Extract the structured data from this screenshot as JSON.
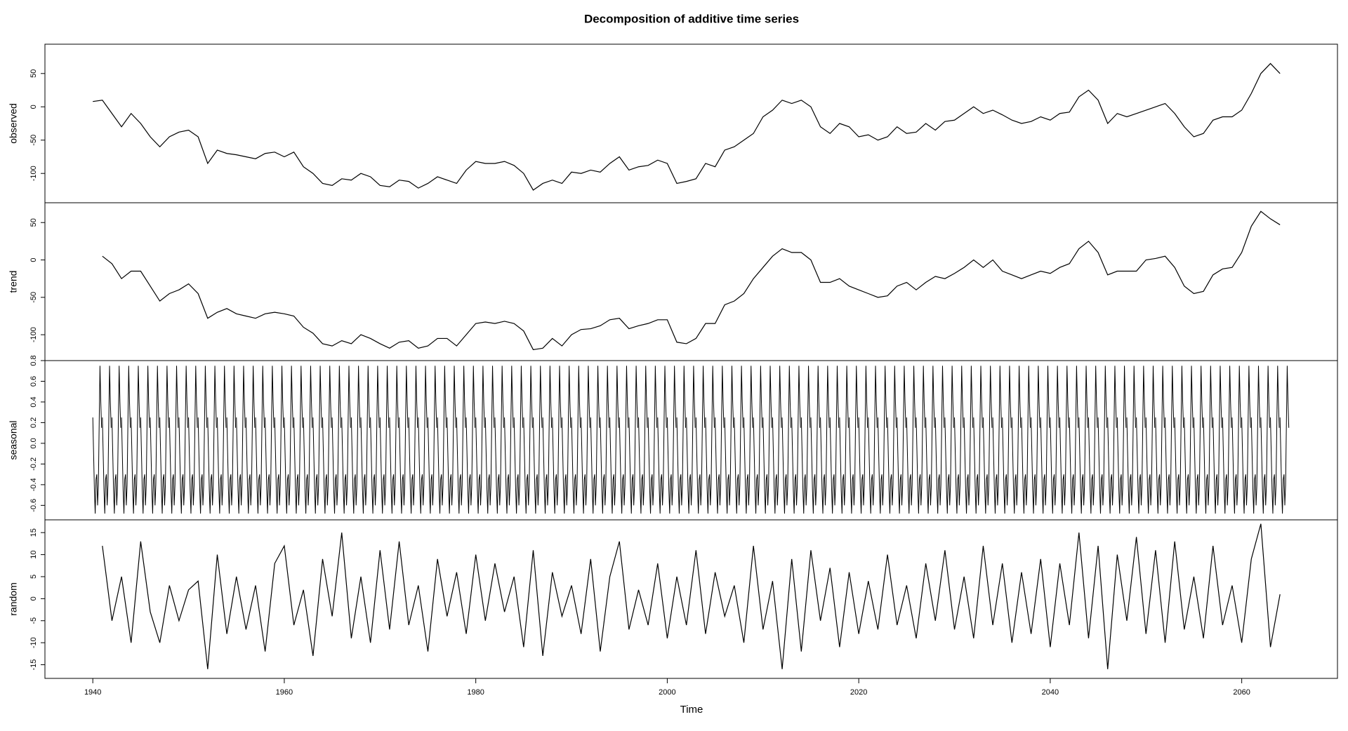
{
  "chart_data": {
    "type": "line",
    "title": "Decomposition of additive time series",
    "xlabel": "Time",
    "color": "#000000",
    "x": [
      1940,
      1941,
      1942,
      1943,
      1944,
      1945,
      1946,
      1947,
      1948,
      1949,
      1950,
      1951,
      1952,
      1953,
      1954,
      1955,
      1956,
      1957,
      1958,
      1959,
      1960,
      1961,
      1962,
      1963,
      1964,
      1965,
      1966,
      1967,
      1968,
      1969,
      1970,
      1971,
      1972,
      1973,
      1974,
      1975,
      1976,
      1977,
      1978,
      1979,
      1980,
      1981,
      1982,
      1983,
      1984,
      1985,
      1986,
      1987,
      1988,
      1989,
      1990,
      1991,
      1992,
      1993,
      1994,
      1995,
      1996,
      1997,
      1998,
      1999,
      2000,
      2001,
      2002,
      2003,
      2004,
      2005,
      2006,
      2007,
      2008,
      2009,
      2010,
      2011,
      2012,
      2013,
      2014,
      2015,
      2016,
      2017,
      2018,
      2019,
      2020,
      2021,
      2022,
      2023,
      2024,
      2025,
      2026,
      2027,
      2028,
      2029,
      2030,
      2031,
      2032,
      2033,
      2034,
      2035,
      2036,
      2037,
      2038,
      2039,
      2040,
      2041,
      2042,
      2043,
      2044,
      2045,
      2046,
      2047,
      2048,
      2049,
      2050,
      2051,
      2052,
      2053,
      2054,
      2055,
      2056,
      2057,
      2058,
      2059,
      2060,
      2061,
      2062,
      2063,
      2064
    ],
    "xlim": [
      1935,
      2070
    ],
    "xticks": [
      1940,
      1960,
      1980,
      2000,
      2020,
      2040,
      2060
    ],
    "panels": [
      {
        "ylabel": "observed",
        "ylim": [
          -144,
          94
        ],
        "yticks": [
          -100,
          -50,
          0,
          50
        ],
        "values": [
          8,
          10,
          -10,
          -30,
          -10,
          -25,
          -45,
          -60,
          -45,
          -38,
          -35,
          -45,
          -85,
          -65,
          -70,
          -72,
          -75,
          -78,
          -70,
          -68,
          -75,
          -68,
          -90,
          -100,
          -115,
          -118,
          -108,
          -110,
          -100,
          -105,
          -118,
          -120,
          -110,
          -112,
          -122,
          -115,
          -105,
          -110,
          -115,
          -95,
          -82,
          -85,
          -85,
          -82,
          -88,
          -100,
          -125,
          -115,
          -110,
          -115,
          -98,
          -100,
          -95,
          -98,
          -85,
          -75,
          -95,
          -90,
          -88,
          -80,
          -85,
          -115,
          -112,
          -108,
          -85,
          -90,
          -65,
          -60,
          -50,
          -40,
          -15,
          -5,
          10,
          5,
          10,
          0,
          -30,
          -40,
          -25,
          -30,
          -45,
          -42,
          -50,
          -45,
          -30,
          -40,
          -38,
          -25,
          -35,
          -22,
          -20,
          -10,
          0,
          -10,
          -5,
          -12,
          -20,
          -25,
          -22,
          -15,
          -20,
          -10,
          -8,
          15,
          25,
          10,
          -25,
          -10,
          -15,
          -10,
          -5,
          0,
          5,
          -10,
          -30,
          -45,
          -40,
          -20,
          -15,
          -15,
          -5,
          20,
          50,
          65,
          50
        ]
      },
      {
        "ylabel": "trend",
        "ylim": [
          -134.6,
          76.5
        ],
        "yticks": [
          -100,
          -50,
          0,
          50
        ],
        "values": [
          null,
          5,
          -5,
          -25,
          -15,
          -15,
          -35,
          -55,
          -45,
          -40,
          -32,
          -45,
          -78,
          -70,
          -65,
          -72,
          -75,
          -78,
          -72,
          -70,
          -72,
          -75,
          -90,
          -98,
          -112,
          -115,
          -108,
          -112,
          -100,
          -105,
          -112,
          -118,
          -110,
          -108,
          -118,
          -115,
          -105,
          -105,
          -115,
          -100,
          -85,
          -83,
          -85,
          -82,
          -85,
          -95,
          -120,
          -118,
          -105,
          -115,
          -100,
          -93,
          -92,
          -88,
          -80,
          -78,
          -92,
          -88,
          -85,
          -80,
          -80,
          -110,
          -112,
          -105,
          -85,
          -85,
          -60,
          -55,
          -45,
          -25,
          -10,
          5,
          15,
          10,
          10,
          0,
          -30,
          -30,
          -25,
          -35,
          -40,
          -45,
          -50,
          -48,
          -35,
          -30,
          -40,
          -30,
          -22,
          -25,
          -18,
          -10,
          0,
          -10,
          0,
          -15,
          -20,
          -25,
          -20,
          -15,
          -18,
          -10,
          -5,
          15,
          25,
          10,
          -20,
          -15,
          -15,
          -15,
          0,
          2,
          5,
          -10,
          -35,
          -45,
          -42,
          -20,
          -12,
          -10,
          10,
          45,
          65,
          55,
          47
        ]
      },
      {
        "ylabel": "seasonal",
        "ylim": [
          -0.74,
          0.8
        ],
        "yticks": [
          -0.6,
          -0.4,
          -0.2,
          {
            "value": 0,
            "label": "0.0"
          },
          0.2,
          0.4,
          0.6,
          0.8
        ],
        "x": [
          1940,
          1940.0833,
          1940.1667,
          1940.25,
          1940.3333,
          1940.4167,
          1940.5,
          1940.5833,
          1940.6667,
          1940.75,
          1940.8333,
          1940.9167
        ],
        "values": [
          0.25,
          -0.1,
          -0.45,
          -0.68,
          -0.35,
          -0.3,
          -0.6,
          -0.4,
          0.2,
          0.75,
          0.4,
          0.15
        ]
      },
      {
        "ylabel": "random",
        "ylim": [
          -18.1,
          17.9
        ],
        "yticks": [
          -15,
          -10,
          -5,
          0,
          5,
          10,
          15
        ],
        "values": [
          null,
          12,
          -5,
          5,
          -10,
          13,
          -3,
          -10,
          3,
          -5,
          2,
          4,
          -16,
          10,
          -8,
          5,
          -7,
          3,
          -12,
          8,
          12,
          -6,
          2,
          -13,
          9,
          -4,
          15,
          -9,
          5,
          -10,
          11,
          -7,
          13,
          -6,
          3,
          -12,
          9,
          -4,
          6,
          -8,
          10,
          -5,
          8,
          -3,
          5,
          -11,
          11,
          -13,
          6,
          -4,
          3,
          -8,
          9,
          -12,
          5,
          13,
          -7,
          2,
          -6,
          8,
          -9,
          5,
          -6,
          11,
          -8,
          6,
          -4,
          3,
          -10,
          12,
          -7,
          4,
          -16,
          9,
          -12,
          11,
          -5,
          7,
          -11,
          6,
          -8,
          4,
          -7,
          10,
          -6,
          3,
          -9,
          8,
          -5,
          11,
          -7,
          5,
          -9,
          12,
          -6,
          8,
          -10,
          6,
          -8,
          9,
          -11,
          8,
          -6,
          15,
          -9,
          12,
          -16,
          10,
          -5,
          14,
          -8,
          11,
          -10,
          13,
          -7,
          5,
          -9,
          12,
          -6,
          3,
          -10,
          9,
          17,
          -11,
          1
        ]
      }
    ]
  }
}
